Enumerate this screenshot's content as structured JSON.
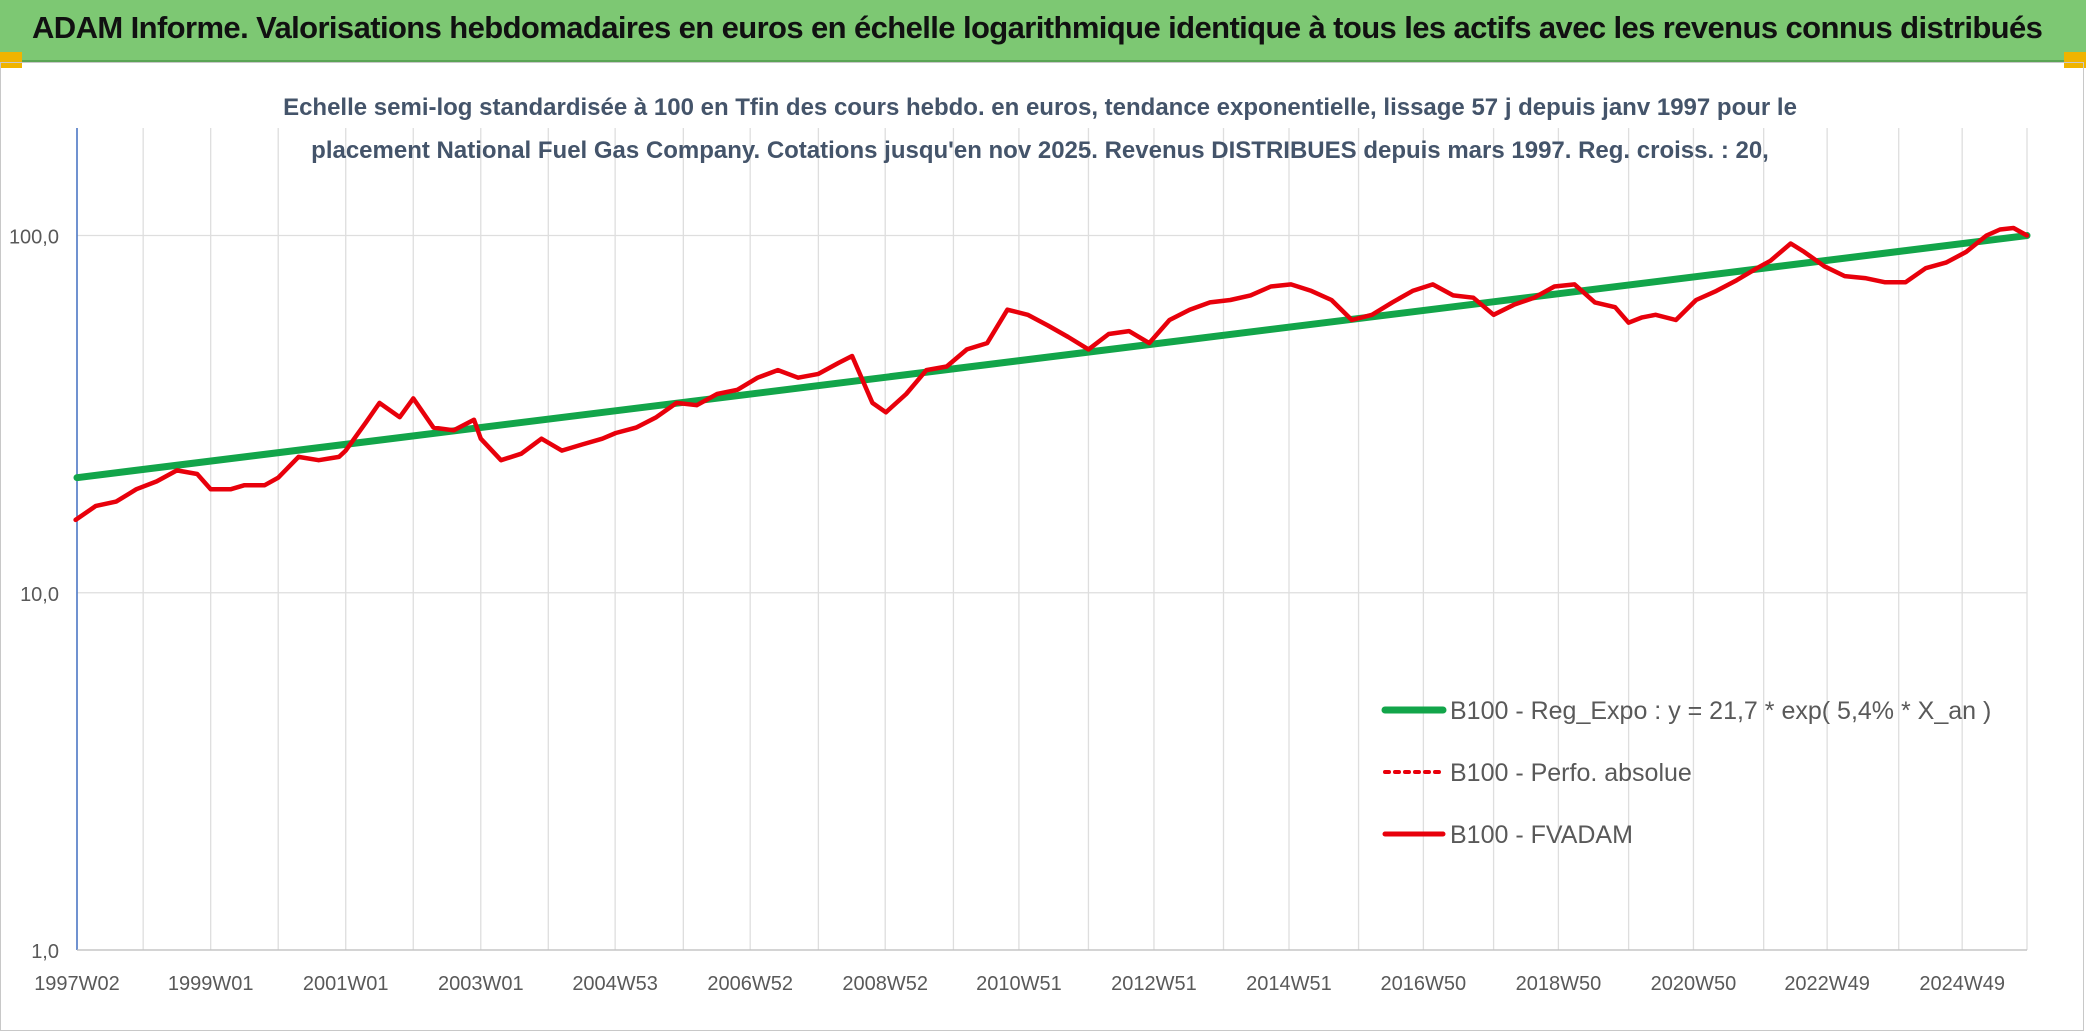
{
  "banner": {
    "title": "ADAM Informe. Valorisations hebdomadaires en euros en échelle logarithmique identique à tous les actifs avec les revenus connus distribués"
  },
  "colors": {
    "banner_bg": "#7dc873",
    "accent": "#f0b400",
    "regression": "#12a54a",
    "fvadam": "#e8000b",
    "perfo": "#e8000b",
    "grid": "#dedede",
    "axis": "#4472c4"
  },
  "chart_data": {
    "type": "line",
    "title_lines": [
      "Echelle semi-log standardisée à 100 en Tfin des cours hebdo. en euros, tendance exponentielle, lissage 57 j depuis janv 1997 pour le",
      "placement National Fuel Gas Company. Cotations jusqu'en nov 2025. Revenus DISTRIBUES depuis mars 1997. Reg. croiss. : 20,"
    ],
    "y_scale": "log",
    "ylim": [
      1,
      200
    ],
    "y_ticks": [
      {
        "value": 1,
        "label": "1,0"
      },
      {
        "value": 10,
        "label": "10,0"
      },
      {
        "value": 100,
        "label": "100,0"
      }
    ],
    "xlim": [
      1997.02,
      2025.9
    ],
    "x_ticks": [
      {
        "value": 1997.02,
        "label": "1997W02"
      },
      {
        "value": 1999.0,
        "label": "1999W01"
      },
      {
        "value": 2001.0,
        "label": "2001W01"
      },
      {
        "value": 2003.0,
        "label": "2003W01"
      },
      {
        "value": 2004.99,
        "label": "2004W53"
      },
      {
        "value": 2006.99,
        "label": "2006W52"
      },
      {
        "value": 2008.99,
        "label": "2008W52"
      },
      {
        "value": 2010.97,
        "label": "2010W51"
      },
      {
        "value": 2012.97,
        "label": "2012W51"
      },
      {
        "value": 2014.97,
        "label": "2014W51"
      },
      {
        "value": 2016.96,
        "label": "2016W50"
      },
      {
        "value": 2018.96,
        "label": "2018W50"
      },
      {
        "value": 2020.96,
        "label": "2020W50"
      },
      {
        "value": 2022.94,
        "label": "2022W49"
      },
      {
        "value": 2024.94,
        "label": "2024W49"
      }
    ],
    "x_minor_ticks": [
      1998.0,
      2000.0,
      2002.0,
      2004.0,
      2006.0,
      2008.0,
      2010.0,
      2012.0,
      2014.0,
      2016.0,
      2018.0,
      2020.0,
      2022.0,
      2024.0
    ],
    "grid": true,
    "legend_position": "bottom-right",
    "series": [
      {
        "name": "B100 - Reg_Expo : y = 21,7 * exp( 5,4% *  X_an )",
        "style": "solid-thick",
        "x": [
          1997.02,
          2025.9
        ],
        "values": [
          21,
          100
        ]
      },
      {
        "name": "B100 - Perfo. absolue",
        "style": "dotted",
        "x": [],
        "values": []
      },
      {
        "name": "B100 - FVADAM",
        "style": "solid",
        "x": [
          1997.0,
          1997.3,
          1997.6,
          1997.9,
          1998.2,
          1998.5,
          1998.8,
          1999.0,
          1999.3,
          1999.5,
          1999.8,
          2000.0,
          2000.3,
          2000.6,
          2000.9,
          2001.0,
          2001.3,
          2001.5,
          2001.8,
          2002.0,
          2002.3,
          2002.6,
          2002.9,
          2003.0,
          2003.3,
          2003.6,
          2003.9,
          2004.2,
          2004.5,
          2004.8,
          2005.0,
          2005.3,
          2005.6,
          2005.9,
          2006.2,
          2006.5,
          2006.8,
          2007.1,
          2007.4,
          2007.7,
          2008.0,
          2008.3,
          2008.5,
          2008.8,
          2009.0,
          2009.3,
          2009.6,
          2009.9,
          2010.2,
          2010.5,
          2010.8,
          2011.1,
          2011.4,
          2011.7,
          2012.0,
          2012.3,
          2012.6,
          2012.9,
          2013.2,
          2013.5,
          2013.8,
          2014.1,
          2014.4,
          2014.7,
          2015.0,
          2015.3,
          2015.6,
          2015.9,
          2016.2,
          2016.5,
          2016.8,
          2017.1,
          2017.4,
          2017.7,
          2018.0,
          2018.3,
          2018.6,
          2018.9,
          2019.2,
          2019.5,
          2019.8,
          2020.0,
          2020.2,
          2020.4,
          2020.7,
          2021.0,
          2021.3,
          2021.6,
          2021.9,
          2022.1,
          2022.4,
          2022.6,
          2022.9,
          2023.2,
          2023.5,
          2023.8,
          2024.1,
          2024.4,
          2024.7,
          2025.0,
          2025.3,
          2025.5,
          2025.7,
          2025.9
        ],
        "values": [
          16,
          17.5,
          18,
          19.5,
          20.5,
          22,
          21.5,
          19.5,
          19.5,
          20,
          20,
          21,
          24,
          23.5,
          24,
          25,
          30,
          34,
          31,
          35,
          29,
          28.5,
          30.5,
          27,
          23.5,
          24.5,
          27,
          25,
          26,
          27,
          28,
          29,
          31,
          34,
          33.5,
          36,
          37,
          40,
          42,
          40,
          41,
          44,
          46,
          34,
          32,
          36,
          42,
          43,
          48,
          50,
          62,
          60,
          56,
          52,
          48,
          53,
          54,
          50,
          58,
          62,
          65,
          66,
          68,
          72,
          73,
          70,
          66,
          58,
          60,
          65,
          70,
          73,
          68,
          67,
          60,
          64,
          67,
          72,
          73,
          65,
          63,
          57,
          59,
          60,
          58,
          66,
          70,
          75,
          81,
          85,
          95,
          90,
          82,
          77,
          76,
          74,
          74,
          81,
          84,
          90,
          100,
          104,
          105,
          100
        ]
      }
    ]
  }
}
